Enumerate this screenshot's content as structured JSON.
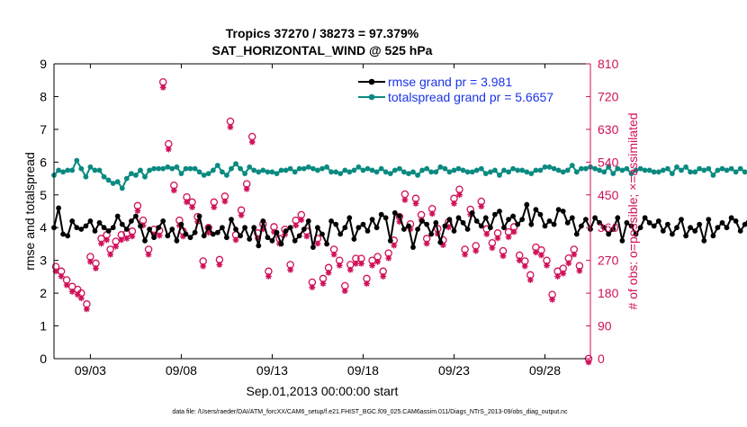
{
  "chart_data": {
    "type": "line",
    "title": "Tropics 37270 / 38273 = 97.379%",
    "subtitle": "SAT_HORIZONTAL_WIND @ 525 hPa",
    "xlabel": "Sep.01,2013 00:00:00 start",
    "ylabel_left": "rmse and totalspread",
    "ylabel_right": "# of obs: o=possible; ×=assimilated",
    "footer": "data file: /Users/raeder/DAI/ATM_forcXX/CAM6_setup/f.e21.FHIST_BGC.f09_025.CAM6assim.011/Diags_NTrS_2013-09/obs_diag_output.nc",
    "xlim": [
      1.0,
      30.5
    ],
    "ylim_left": [
      0,
      9
    ],
    "ylim_right": [
      0,
      810
    ],
    "xticks": [
      {
        "x": 3,
        "label": "09/03"
      },
      {
        "x": 8,
        "label": "09/08"
      },
      {
        "x": 13,
        "label": "09/13"
      },
      {
        "x": 18,
        "label": "09/18"
      },
      {
        "x": 23,
        "label": "09/23"
      },
      {
        "x": 28,
        "label": "09/28"
      }
    ],
    "yticks_left": [
      0,
      1,
      2,
      3,
      4,
      5,
      6,
      7,
      8,
      9
    ],
    "yticks_right": [
      0,
      90,
      180,
      270,
      360,
      450,
      540,
      630,
      720,
      810
    ],
    "colors": {
      "rmse": "#000000",
      "spread": "#0a8a80",
      "obs": "#d0105a",
      "legend_text": "#1a33e6"
    },
    "series": [
      {
        "name": "rmse grand pr = 3.981",
        "axis": "left",
        "marker": "dot",
        "x0": 1.0,
        "dx": 0.25,
        "values": [
          4.0,
          4.6,
          3.8,
          3.75,
          4.2,
          4.0,
          3.95,
          4.05,
          4.2,
          3.9,
          4.15,
          4.0,
          3.9,
          4.0,
          4.35,
          4.1,
          3.95,
          4.2,
          4.35,
          4.05,
          3.6,
          3.95,
          3.7,
          4.0,
          4.2,
          3.75,
          3.95,
          3.6,
          4.1,
          3.8,
          3.7,
          3.85,
          4.35,
          3.75,
          4.0,
          3.8,
          3.85,
          4.0,
          3.7,
          4.25,
          3.95,
          3.75,
          4.0,
          3.65,
          4.0,
          3.45,
          4.2,
          3.7,
          3.6,
          3.85,
          3.5,
          3.9,
          4.0,
          3.6,
          3.75,
          3.95,
          4.2,
          3.4,
          4.0,
          3.8,
          3.5,
          4.2,
          4.1,
          3.8,
          4.0,
          4.3,
          3.65,
          4.0,
          4.1,
          3.9,
          4.25,
          4.0,
          4.4,
          4.3,
          3.6,
          4.45,
          4.35,
          3.95,
          4.05,
          3.4,
          3.95,
          4.2,
          4.1,
          3.8,
          4.15,
          3.55,
          4.05,
          4.25,
          3.9,
          4.3,
          4.15,
          3.95,
          4.45,
          4.2,
          4.05,
          4.3,
          4.0,
          4.4,
          4.5,
          4.0,
          4.25,
          4.35,
          4.1,
          4.25,
          4.7,
          4.1,
          4.55,
          4.4,
          4.05,
          4.2,
          4.1,
          4.55,
          4.5,
          4.15,
          4.3,
          3.8,
          4.05,
          4.25,
          3.95,
          4.3,
          4.15,
          4.0,
          3.8,
          3.95,
          4.3,
          3.6,
          4.15,
          4.05,
          3.8,
          4.0,
          4.3,
          4.15,
          4.05,
          4.2,
          3.9,
          4.1,
          3.8,
          4.0,
          4.25,
          3.75,
          4.0,
          3.9,
          4.1,
          3.6,
          4.25,
          3.75,
          4.0,
          4.15,
          4.0,
          4.3,
          4.2,
          3.9,
          4.1,
          4.3,
          4.0,
          4.2,
          4.05,
          4.3,
          4.05,
          3.95,
          4.35,
          3.95,
          4.3,
          4.1,
          3.9,
          4.0,
          4.25,
          3.85,
          3.75,
          4.35,
          3.95,
          4.25,
          4.1,
          4.0,
          3.95,
          3.9,
          4.3,
          4.15,
          3.6,
          3.9,
          4.05,
          3.7,
          4.25,
          4.05,
          3.9,
          4.0,
          4.35,
          4.15,
          4.05,
          4.2,
          4.35,
          4.35,
          3.95,
          3.8,
          3.75,
          3.95,
          4.1,
          3.8,
          3.9,
          3.85,
          3.7,
          3.9,
          4.0,
          3.9,
          4.2,
          3.95
        ]
      },
      {
        "name": "totalspread grand pr = 5.6657",
        "axis": "left",
        "marker": "dot",
        "x0": 1.0,
        "dx": 0.25,
        "values": [
          5.6,
          5.75,
          5.7,
          5.75,
          5.75,
          6.05,
          5.8,
          5.55,
          5.85,
          5.75,
          5.75,
          5.55,
          5.45,
          5.35,
          5.4,
          5.2,
          5.5,
          5.65,
          5.6,
          5.75,
          5.55,
          5.75,
          5.8,
          5.8,
          5.8,
          5.85,
          5.8,
          5.85,
          5.65,
          5.8,
          5.8,
          5.8,
          5.7,
          5.6,
          5.65,
          5.75,
          5.9,
          5.7,
          5.6,
          5.8,
          5.95,
          5.8,
          5.65,
          5.85,
          5.75,
          5.7,
          5.75,
          5.7,
          5.7,
          5.65,
          5.75,
          5.75,
          5.8,
          5.7,
          5.8,
          5.8,
          5.85,
          5.8,
          5.75,
          5.8,
          5.85,
          5.7,
          5.7,
          5.65,
          5.75,
          5.7,
          5.75,
          5.85,
          5.75,
          5.8,
          5.75,
          5.7,
          5.8,
          5.7,
          5.65,
          5.75,
          5.8,
          5.7,
          5.65,
          5.7,
          5.6,
          5.75,
          5.8,
          5.7,
          5.7,
          5.85,
          5.8,
          5.7,
          5.75,
          5.8,
          5.75,
          5.7,
          5.7,
          5.75,
          5.8,
          5.65,
          5.7,
          5.75,
          5.6,
          5.75,
          5.7,
          5.8,
          5.75,
          5.75,
          5.7,
          5.65,
          5.75,
          5.75,
          5.85,
          5.85,
          5.8,
          5.75,
          5.7,
          5.75,
          5.9,
          5.7,
          5.8,
          5.8,
          5.85,
          5.8,
          5.75,
          5.7,
          5.85,
          5.65,
          5.8,
          5.75,
          5.8,
          5.65,
          5.75,
          5.8,
          5.75,
          5.75,
          5.7,
          5.7,
          5.75,
          5.8,
          5.65,
          5.85,
          5.75,
          5.85,
          5.7,
          5.7,
          5.8,
          5.75,
          5.8,
          5.6,
          5.75,
          5.8,
          5.75,
          5.8,
          5.7,
          5.8,
          5.7,
          5.65,
          5.75,
          5.75,
          5.6,
          5.75,
          5.75,
          5.7,
          5.7,
          5.75,
          5.65,
          5.7,
          5.6,
          5.7,
          5.75,
          5.65,
          5.7,
          5.8,
          5.65,
          5.75,
          5.75,
          5.65,
          5.8,
          5.7,
          5.75,
          5.8,
          5.75,
          5.75,
          5.7,
          5.65,
          5.8,
          5.75,
          5.7,
          5.75,
          5.75,
          5.6,
          5.8,
          5.75,
          5.7,
          5.85,
          5.75,
          5.8,
          5.75,
          5.75,
          5.8,
          5.75,
          5.2,
          5.25,
          5.6,
          5.75,
          5.85,
          5.75,
          5.75,
          5.8,
          5.95,
          5.95,
          5.95,
          5.95,
          5.95,
          5.9
        ]
      }
    ],
    "obs_possible": {
      "axis": "right",
      "marker": "circle",
      "points": [
        [
          1.1,
          253
        ],
        [
          1.4,
          240
        ],
        [
          1.7,
          216
        ],
        [
          2.0,
          198
        ],
        [
          2.3,
          190
        ],
        [
          2.5,
          180
        ],
        [
          2.8,
          150
        ],
        [
          3.0,
          280
        ],
        [
          3.3,
          262
        ],
        [
          3.6,
          330
        ],
        [
          3.9,
          340
        ],
        [
          4.1,
          300
        ],
        [
          4.4,
          322
        ],
        [
          4.7,
          340
        ],
        [
          5.0,
          344
        ],
        [
          5.3,
          350
        ],
        [
          5.6,
          420
        ],
        [
          5.9,
          380
        ],
        [
          6.2,
          300
        ],
        [
          6.5,
          355
        ],
        [
          6.8,
          352
        ],
        [
          7.0,
          760
        ],
        [
          7.3,
          590
        ],
        [
          7.6,
          476
        ],
        [
          7.9,
          380
        ],
        [
          8.1,
          350
        ],
        [
          8.3,
          444
        ],
        [
          8.6,
          430
        ],
        [
          8.9,
          390
        ],
        [
          9.2,
          268
        ],
        [
          9.5,
          360
        ],
        [
          9.8,
          430
        ],
        [
          10.1,
          272
        ],
        [
          10.4,
          446
        ],
        [
          10.7,
          652
        ],
        [
          11.0,
          340
        ],
        [
          11.3,
          408
        ],
        [
          11.6,
          480
        ],
        [
          11.9,
          610
        ],
        [
          12.2,
          345
        ],
        [
          12.5,
          370
        ],
        [
          12.8,
          240
        ],
        [
          13.1,
          362
        ],
        [
          13.4,
          330
        ],
        [
          13.7,
          355
        ],
        [
          14.0,
          258
        ],
        [
          14.3,
          380
        ],
        [
          14.6,
          395
        ],
        [
          14.9,
          350
        ],
        [
          15.2,
          210
        ],
        [
          15.5,
          330
        ],
        [
          15.8,
          220
        ],
        [
          16.1,
          250
        ],
        [
          16.4,
          300
        ],
        [
          16.7,
          270
        ],
        [
          17.0,
          200
        ],
        [
          17.3,
          258
        ],
        [
          17.6,
          275
        ],
        [
          17.9,
          275
        ],
        [
          18.2,
          220
        ],
        [
          18.5,
          270
        ],
        [
          18.8,
          280
        ],
        [
          19.1,
          240
        ],
        [
          19.4,
          290
        ],
        [
          19.7,
          325
        ],
        [
          20.0,
          390
        ],
        [
          20.3,
          452
        ],
        [
          20.6,
          370
        ],
        [
          20.9,
          440
        ],
        [
          21.2,
          395
        ],
        [
          21.5,
          330
        ],
        [
          21.8,
          412
        ],
        [
          22.1,
          357
        ],
        [
          22.4,
          326
        ],
        [
          22.7,
          375
        ],
        [
          23.0,
          440
        ],
        [
          23.3,
          465
        ],
        [
          23.6,
          300
        ],
        [
          23.9,
          410
        ],
        [
          24.2,
          310
        ],
        [
          24.5,
          432
        ],
        [
          24.8,
          356
        ],
        [
          25.1,
          318
        ],
        [
          25.4,
          345
        ],
        [
          25.7,
          296
        ],
        [
          26.0,
          348
        ],
        [
          26.3,
          362
        ],
        [
          26.6,
          284
        ],
        [
          26.9,
          268
        ],
        [
          27.2,
          230
        ],
        [
          27.5,
          306
        ],
        [
          27.8,
          298
        ],
        [
          28.1,
          270
        ],
        [
          28.4,
          176
        ],
        [
          28.7,
          240
        ],
        [
          29.0,
          248
        ],
        [
          29.3,
          276
        ],
        [
          29.6,
          300
        ],
        [
          29.9,
          255
        ],
        [
          30.4,
          0
        ]
      ]
    },
    "obs_assimilated": {
      "axis": "right",
      "marker": "asterisk",
      "points": [
        [
          1.1,
          250
        ],
        [
          1.4,
          236
        ],
        [
          1.7,
          212
        ],
        [
          2.0,
          194
        ],
        [
          2.3,
          186
        ],
        [
          2.5,
          176
        ],
        [
          2.8,
          146
        ],
        [
          3.0,
          276
        ],
        [
          3.3,
          258
        ],
        [
          3.6,
          326
        ],
        [
          3.9,
          336
        ],
        [
          4.1,
          296
        ],
        [
          4.4,
          318
        ],
        [
          4.7,
          336
        ],
        [
          5.0,
          340
        ],
        [
          5.3,
          346
        ],
        [
          5.6,
          416
        ],
        [
          5.9,
          376
        ],
        [
          6.2,
          296
        ],
        [
          6.5,
          351
        ],
        [
          6.8,
          348
        ],
        [
          7.0,
          755
        ],
        [
          7.3,
          585
        ],
        [
          7.6,
          472
        ],
        [
          7.9,
          376
        ],
        [
          8.1,
          346
        ],
        [
          8.3,
          440
        ],
        [
          8.6,
          426
        ],
        [
          8.9,
          386
        ],
        [
          9.2,
          264
        ],
        [
          9.5,
          356
        ],
        [
          9.8,
          426
        ],
        [
          10.1,
          268
        ],
        [
          10.4,
          442
        ],
        [
          10.7,
          646
        ],
        [
          11.0,
          336
        ],
        [
          11.3,
          404
        ],
        [
          11.6,
          476
        ],
        [
          11.9,
          605
        ],
        [
          12.2,
          341
        ],
        [
          12.5,
          366
        ],
        [
          12.8,
          236
        ],
        [
          13.1,
          358
        ],
        [
          13.4,
          326
        ],
        [
          13.7,
          351
        ],
        [
          14.0,
          254
        ],
        [
          14.3,
          376
        ],
        [
          14.6,
          391
        ],
        [
          14.9,
          346
        ],
        [
          15.2,
          206
        ],
        [
          15.5,
          326
        ],
        [
          15.8,
          216
        ],
        [
          16.1,
          246
        ],
        [
          16.4,
          296
        ],
        [
          16.7,
          266
        ],
        [
          17.0,
          196
        ],
        [
          17.3,
          254
        ],
        [
          17.6,
          271
        ],
        [
          17.9,
          271
        ],
        [
          18.2,
          216
        ],
        [
          18.5,
          266
        ],
        [
          18.8,
          276
        ],
        [
          19.1,
          236
        ],
        [
          19.4,
          286
        ],
        [
          19.7,
          321
        ],
        [
          20.0,
          386
        ],
        [
          20.3,
          446
        ],
        [
          20.6,
          366
        ],
        [
          20.9,
          436
        ],
        [
          21.2,
          391
        ],
        [
          21.5,
          326
        ],
        [
          21.8,
          408
        ],
        [
          22.1,
          353
        ],
        [
          22.4,
          322
        ],
        [
          22.7,
          371
        ],
        [
          23.0,
          436
        ],
        [
          23.3,
          460
        ],
        [
          23.6,
          296
        ],
        [
          23.9,
          406
        ],
        [
          24.2,
          306
        ],
        [
          24.5,
          428
        ],
        [
          24.8,
          352
        ],
        [
          25.1,
          314
        ],
        [
          25.4,
          341
        ],
        [
          25.7,
          292
        ],
        [
          26.0,
          344
        ],
        [
          26.3,
          358
        ],
        [
          26.6,
          280
        ],
        [
          26.9,
          264
        ],
        [
          27.2,
          226
        ],
        [
          27.5,
          302
        ],
        [
          27.8,
          294
        ],
        [
          28.1,
          266
        ],
        [
          28.4,
          172
        ],
        [
          28.7,
          236
        ],
        [
          29.0,
          244
        ],
        [
          29.3,
          272
        ],
        [
          29.6,
          296
        ],
        [
          29.9,
          251
        ],
        [
          30.4,
          0
        ]
      ]
    }
  }
}
